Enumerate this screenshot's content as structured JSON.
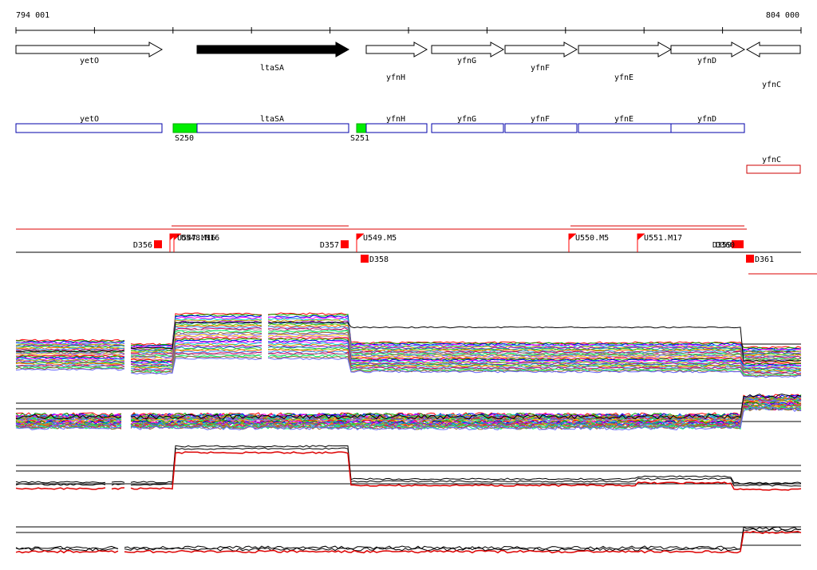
{
  "coords": {
    "start": "794 001",
    "end": "804 000"
  },
  "axis": {
    "start": 794001,
    "end": 804000,
    "tick_interval": 1000
  },
  "genes": [
    {
      "name": "yetO",
      "strand": "+",
      "highlight": false
    },
    {
      "name": "ltaSA",
      "strand": "+",
      "highlight": true
    },
    {
      "name": "yfnH",
      "strand": "+",
      "highlight": false
    },
    {
      "name": "yfnG",
      "strand": "+",
      "highlight": false
    },
    {
      "name": "yfnF",
      "strand": "+",
      "highlight": false
    },
    {
      "name": "yfnE",
      "strand": "+",
      "highlight": false
    },
    {
      "name": "yfnD",
      "strand": "+",
      "highlight": false
    },
    {
      "name": "yfnC",
      "strand": "-",
      "highlight": false
    }
  ],
  "transcripts": {
    "labels": [
      "yetO",
      "ltaSA",
      "yfnH",
      "yfnG",
      "yfnF",
      "yfnE",
      "yfnD",
      "yfnC"
    ],
    "promoters": [
      "S250",
      "S251"
    ],
    "colors": {
      "blue": "#0000aa",
      "green": "#00ee00",
      "red": "#cc0000"
    }
  },
  "features": {
    "down": [
      "D356",
      "D357",
      "D358",
      "D359",
      "D360",
      "D361"
    ],
    "up": [
      "U547.M16",
      "U548.M16",
      "U549.M5",
      "U550.M5",
      "U551.M17"
    ],
    "color": "#ff0000"
  },
  "profile_colors": [
    "#ff0000",
    "#00aa00",
    "#0000ff",
    "#ff00ff",
    "#00cccc",
    "#cc9900",
    "#9900cc",
    "#009999",
    "#66cc00",
    "#ff6600",
    "#3399ff",
    "#cc0066",
    "#888888",
    "#00ff66",
    "#996633",
    "#6666ff",
    "#ffcc00",
    "#cc66cc"
  ]
}
